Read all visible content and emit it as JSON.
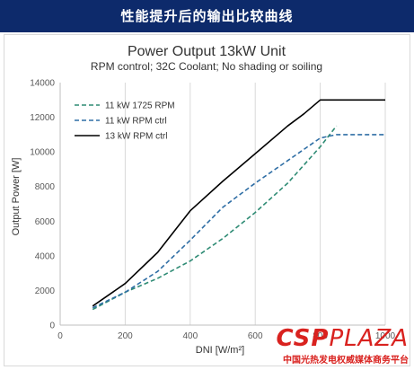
{
  "header": {
    "title": "性能提升后的输出比较曲线"
  },
  "watermark": {
    "logo_main": "CSP",
    "logo_sub": "PLAZA",
    "tagline": "中国光热发电权威媒体商务平台"
  },
  "chart_data": {
    "type": "line",
    "title": "Power Output 13kW Unit",
    "subtitle": "RPM control; 32C Coolant; No shading or soiling",
    "xlabel": "DNI [W/m²]",
    "ylabel": "Output Power [W]",
    "xlim": [
      0,
      1000
    ],
    "ylim": [
      0,
      14000
    ],
    "xticks": [
      0,
      200,
      400,
      600,
      800,
      1000
    ],
    "yticks": [
      0,
      2000,
      4000,
      6000,
      8000,
      10000,
      12000,
      14000
    ],
    "grid": "vertical",
    "legend_position": "top-left",
    "series": [
      {
        "name": "11 kW 1725 RPM",
        "color": "#2e8b74",
        "dash": "dashed",
        "x": [
          100,
          200,
          300,
          400,
          500,
          600,
          700,
          800,
          850
        ],
        "y": [
          900,
          1900,
          2700,
          3700,
          5000,
          6500,
          8200,
          10300,
          11500
        ]
      },
      {
        "name": "11 kW RPM ctrl",
        "color": "#2f6ea5",
        "dash": "dashed",
        "x": [
          100,
          200,
          300,
          400,
          500,
          600,
          700,
          800,
          850,
          1000
        ],
        "y": [
          1000,
          1900,
          3100,
          4900,
          6800,
          8200,
          9500,
          10800,
          11000,
          11000
        ]
      },
      {
        "name": "13 kW RPM ctrl",
        "color": "#000000",
        "dash": "solid",
        "x": [
          100,
          200,
          300,
          400,
          500,
          600,
          700,
          750,
          800,
          1000
        ],
        "y": [
          1100,
          2400,
          4200,
          6600,
          8300,
          9900,
          11500,
          12200,
          13000,
          13000
        ]
      }
    ]
  }
}
